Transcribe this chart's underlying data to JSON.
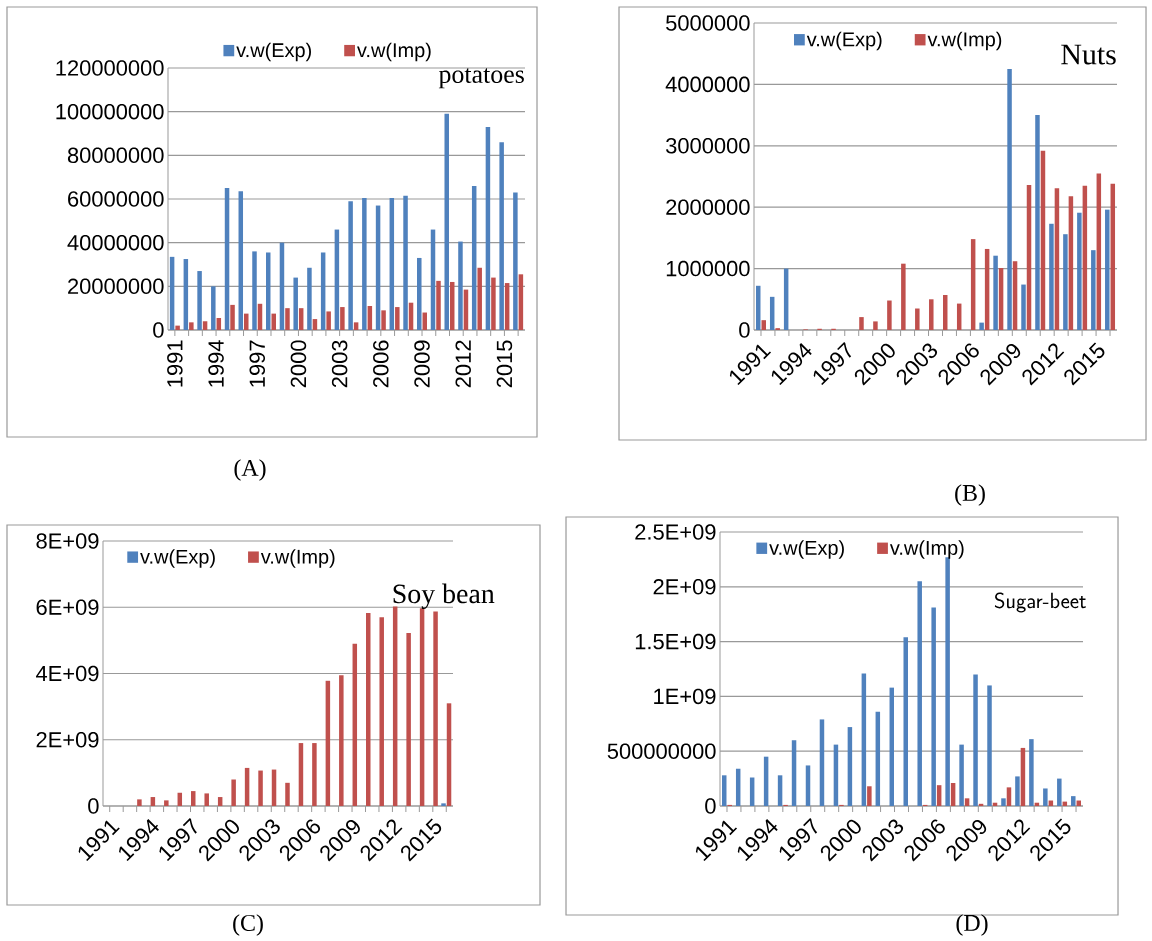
{
  "chart_data": [
    {
      "type": "bar",
      "title": "potatoes",
      "annotations": [
        "(A)"
      ],
      "categories": [
        "1991",
        null,
        null,
        "1994",
        null,
        null,
        "1997",
        null,
        null,
        "2000",
        null,
        null,
        "2003",
        null,
        null,
        "2006",
        null,
        null,
        "2009",
        null,
        null,
        "2012",
        null,
        null,
        "2015",
        null
      ],
      "series": [
        {
          "name": "v.w(Exp)",
          "color": "#4f81bd",
          "values": [
            33500000,
            32500000,
            27000000,
            20000000,
            65000000,
            63500000,
            36000000,
            35500000,
            40000000,
            24000000,
            28500000,
            35500000,
            46000000,
            59000000,
            60500000,
            57000000,
            60500000,
            61500000,
            33000000,
            46000000,
            99000000,
            40500000,
            66000000,
            93000000,
            86000000,
            63000000
          ]
        },
        {
          "name": "v.w(Imp)",
          "color": "#c0504d",
          "values": [
            2000000,
            3500000,
            4000000,
            5500000,
            11500000,
            7500000,
            12000000,
            7500000,
            10000000,
            10000000,
            5000000,
            8500000,
            10500000,
            3500000,
            11000000,
            9000000,
            10500000,
            12500000,
            8000000,
            22500000,
            22000000,
            18500000,
            28500000,
            24000000,
            21500000,
            25500000
          ]
        }
      ],
      "ylim": [
        0,
        120000000
      ],
      "yticks": [
        0,
        20000000,
        40000000,
        60000000,
        80000000,
        100000000,
        120000000
      ],
      "grid": "y",
      "legend": "top"
    },
    {
      "type": "bar",
      "title": "Nuts",
      "annotations": [
        "(B)"
      ],
      "categories": [
        "1991",
        null,
        null,
        "1994",
        null,
        null,
        "1997",
        null,
        null,
        "2000",
        null,
        null,
        "2003",
        null,
        null,
        "2006",
        null,
        null,
        "2009",
        null,
        null,
        "2012",
        null,
        null,
        "2015",
        null
      ],
      "series": [
        {
          "name": "v.w(Exp)",
          "color": "#4f81bd",
          "values": [
            720000,
            540000,
            1000000,
            0,
            0,
            0,
            0,
            0,
            0,
            0,
            0,
            0,
            0,
            0,
            0,
            0,
            120000,
            1210000,
            4250000,
            740000,
            3500000,
            1730000,
            1560000,
            1910000,
            1300000,
            1960000
          ]
        },
        {
          "name": "v.w(Imp)",
          "color": "#c0504d",
          "values": [
            160000,
            30000,
            0,
            10000,
            20000,
            20000,
            0,
            210000,
            140000,
            480000,
            1080000,
            350000,
            500000,
            570000,
            430000,
            1480000,
            1320000,
            1010000,
            1120000,
            2360000,
            2920000,
            2310000,
            2180000,
            2350000,
            2550000,
            2380000
          ]
        }
      ],
      "ylim": [
        0,
        5000000
      ],
      "yticks": [
        0,
        1000000,
        2000000,
        3000000,
        4000000,
        5000000
      ],
      "grid": "y",
      "legend": "top"
    },
    {
      "type": "bar",
      "title": "Soy bean",
      "annotations": [
        "(C)"
      ],
      "categories": [
        "1991",
        null,
        null,
        "1994",
        null,
        null,
        "1997",
        null,
        null,
        "2000",
        null,
        null,
        "2003",
        null,
        null,
        "2006",
        null,
        null,
        "2009",
        null,
        null,
        "2012",
        null,
        null,
        "2015",
        null
      ],
      "series": [
        {
          "name": "v.w(Exp)",
          "color": "#4f81bd",
          "values": [
            0,
            0,
            0,
            0,
            0,
            0,
            0,
            0,
            0,
            0,
            0,
            0,
            0,
            0,
            0,
            0,
            0,
            0,
            0,
            0,
            0,
            0,
            0,
            0,
            0,
            80000000
          ]
        },
        {
          "name": "v.w(Imp)",
          "color": "#c0504d",
          "values": [
            0,
            0,
            200000000,
            270000000,
            170000000,
            400000000,
            450000000,
            380000000,
            270000000,
            800000000,
            1150000000,
            1070000000,
            1100000000,
            700000000,
            1900000000,
            1900000000,
            3780000000,
            3950000000,
            4900000000,
            5830000000,
            5700000000,
            6020000000,
            5220000000,
            5970000000,
            5870000000,
            3100000000
          ]
        }
      ],
      "ylim": [
        0,
        8000000000
      ],
      "yticks": [
        {
          "value": 0,
          "label": "0"
        },
        {
          "value": 2000000000,
          "label": "2E+09"
        },
        {
          "value": 4000000000,
          "label": "4E+09"
        },
        {
          "value": 6000000000,
          "label": "6E+09"
        },
        {
          "value": 8000000000,
          "label": "8E+09"
        }
      ],
      "grid": "y",
      "legend": "top"
    },
    {
      "type": "bar",
      "title": "Sugar-beet",
      "annotations": [
        "(D)"
      ],
      "categories": [
        "1991",
        null,
        null,
        "1994",
        null,
        null,
        "1997",
        null,
        null,
        "2000",
        null,
        null,
        "2003",
        null,
        null,
        "2006",
        null,
        null,
        "2009",
        null,
        null,
        "2012",
        null,
        null,
        "2015",
        null
      ],
      "series": [
        {
          "name": "v.w(Exp)",
          "color": "#4f81bd",
          "values": [
            280000000,
            340000000,
            260000000,
            450000000,
            280000000,
            600000000,
            370000000,
            790000000,
            560000000,
            720000000,
            1210000000,
            860000000,
            1080000000,
            1540000000,
            2050000000,
            1810000000,
            2270000000,
            560000000,
            1200000000,
            1100000000,
            70000000,
            270000000,
            610000000,
            160000000,
            250000000,
            90000000
          ]
        },
        {
          "name": "v.w(Imp)",
          "color": "#c0504d",
          "values": [
            10000000,
            0,
            0,
            0,
            10000000,
            0,
            0,
            0,
            10000000,
            0,
            180000000,
            0,
            0,
            0,
            10000000,
            190000000,
            210000000,
            70000000,
            20000000,
            30000000,
            170000000,
            530000000,
            30000000,
            50000000,
            40000000,
            50000000
          ]
        }
      ],
      "ylim": [
        0,
        2500000000
      ],
      "yticks": [
        0,
        {
          "value": 500000000,
          "label": "500000000"
        },
        {
          "value": 1000000000,
          "label": "1E+09"
        },
        {
          "value": 1500000000,
          "label": "1.5E+09"
        },
        {
          "value": 2000000000,
          "label": "2E+09"
        },
        {
          "value": 2500000000,
          "label": "2.5E+09"
        }
      ],
      "grid": "y",
      "legend": "top"
    }
  ]
}
